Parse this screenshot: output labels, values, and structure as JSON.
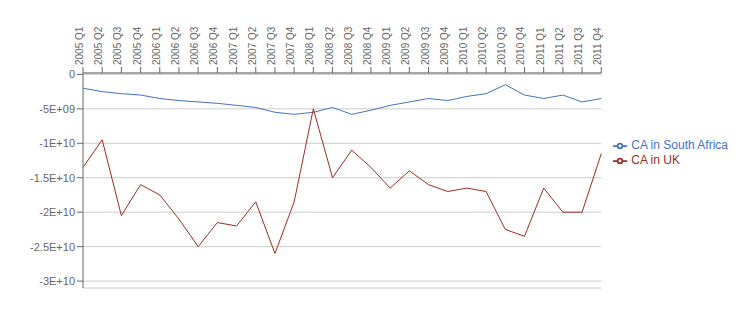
{
  "chart_data": {
    "type": "line",
    "categories": [
      "2005 Q1",
      "2005 Q2",
      "2005 Q3",
      "2005 Q4",
      "2006 Q1",
      "2006 Q2",
      "2006 Q3",
      "2006 Q4",
      "2007 Q1",
      "2007 Q2",
      "2007 Q3",
      "2007 Q4",
      "2008 Q1",
      "2008 Q2",
      "2008 Q3",
      "2008 Q4",
      "2009 Q1",
      "2009 Q2",
      "2009 Q3",
      "2009 Q4",
      "2010 Q1",
      "2010 Q2",
      "2010 Q3",
      "2010 Q4",
      "2011 Q1",
      "2011 Q2",
      "2011 Q3",
      "2011 Q4"
    ],
    "series": [
      {
        "name": "CA in South Africa",
        "color": "#4472C4",
        "values": [
          -2000000000,
          -2500000000,
          -2800000000,
          -3000000000,
          -3500000000,
          -3800000000,
          -4000000000,
          -4200000000,
          -4500000000,
          -4800000000,
          -5500000000,
          -5800000000,
          -5500000000,
          -4800000000,
          -5800000000,
          -5200000000,
          -4500000000,
          -4000000000,
          -3500000000,
          -3800000000,
          -3200000000,
          -2800000000,
          -1500000000,
          -3000000000,
          -3500000000,
          -3000000000,
          -4000000000,
          -3500000000
        ]
      },
      {
        "name": "CA in UK",
        "color": "#9E2B25",
        "values": [
          -13500000000,
          -9500000000,
          -20500000000,
          -16000000000,
          -17500000000,
          -21000000000,
          -25000000000,
          -21500000000,
          -22000000000,
          -18500000000,
          -26000000000,
          -18500000000,
          -5000000000,
          -15000000000,
          -11000000000,
          -13500000000,
          -16500000000,
          -14000000000,
          -16000000000,
          -17000000000,
          -16500000000,
          -17000000000,
          -22500000000,
          -23500000000,
          -16500000000,
          -20000000000,
          -20000000000,
          -11500000000
        ]
      }
    ],
    "ylim": [
      -31000000000,
      200000000
    ],
    "yticks": [
      0,
      {
        "value": -5000000000,
        "label": "-5E+09"
      },
      {
        "value": -10000000000,
        "label": "-1E+10"
      },
      {
        "value": -15000000000,
        "label": "-1.5E+10"
      },
      {
        "value": -20000000000,
        "label": "-2E+10"
      },
      {
        "value": -25000000000,
        "label": "-2.5E+10"
      },
      {
        "value": -30000000000,
        "label": "-3E+10"
      }
    ],
    "grid": true,
    "legend": "right"
  }
}
